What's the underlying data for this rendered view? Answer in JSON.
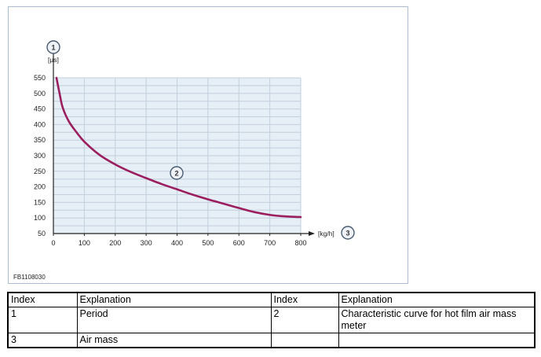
{
  "figure_id": "FB1108030",
  "chart_data": {
    "type": "line",
    "x": [
      10,
      20,
      30,
      50,
      75,
      100,
      150,
      200,
      250,
      300,
      350,
      400,
      450,
      500,
      550,
      600,
      650,
      700,
      750,
      800
    ],
    "series": [
      {
        "values": [
          550,
          500,
          455,
          410,
          375,
          345,
          302,
          272,
          248,
          228,
          209,
          192,
          175,
          160,
          146,
          132,
          119,
          110,
          105,
          103
        ],
        "color": "#9b1f5f"
      }
    ],
    "xlabel": "[kg/h]",
    "ylabel": "[µs]",
    "xlim": [
      0,
      800
    ],
    "ylim": [
      50,
      550
    ],
    "xticks": [
      0,
      100,
      200,
      300,
      400,
      500,
      600,
      700,
      800
    ],
    "yticks": [
      50,
      100,
      150,
      200,
      250,
      300,
      350,
      400,
      450,
      500,
      550
    ],
    "grid": true,
    "callouts": {
      "y_axis": "1",
      "curve": "2",
      "x_axis": "3"
    }
  },
  "legend_table": {
    "header": [
      "Index",
      "Explanation",
      "Index",
      "Explanation"
    ],
    "rows": [
      [
        "1",
        "Period",
        "2",
        "Characteristic curve for hot film air mass meter"
      ],
      [
        "3",
        "Air mass",
        "",
        ""
      ]
    ]
  }
}
